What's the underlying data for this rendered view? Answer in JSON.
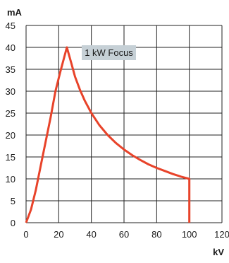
{
  "chart_data": {
    "type": "line",
    "xlabel": "kV",
    "ylabel": "mA",
    "xlim": [
      0,
      120
    ],
    "ylim": [
      0,
      45
    ],
    "x_ticks": [
      0,
      20,
      40,
      60,
      80,
      100,
      120
    ],
    "y_ticks": [
      0,
      5,
      10,
      15,
      20,
      25,
      30,
      35,
      40,
      45
    ],
    "grid": true,
    "annotation": "1 kW Focus",
    "line_color": "#e8432a",
    "label_bg_color": "#c6d0d6",
    "series": [
      {
        "x": [
          0,
          3,
          6,
          9,
          12,
          15,
          18,
          21,
          25,
          28,
          30,
          33,
          36,
          40,
          45,
          50,
          55,
          60,
          65,
          70,
          75,
          80,
          85,
          90,
          95,
          100,
          100
        ],
        "y": [
          0,
          3,
          7.5,
          13,
          18.5,
          24,
          30,
          34.5,
          40,
          36,
          33.3,
          30.3,
          27.8,
          25,
          22.2,
          20,
          18.2,
          16.7,
          15.4,
          14.3,
          13.3,
          12.5,
          11.8,
          11.1,
          10.5,
          10,
          0
        ]
      }
    ]
  }
}
